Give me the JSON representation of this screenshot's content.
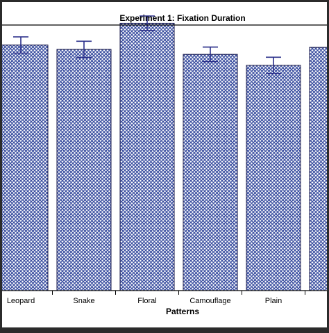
{
  "chart_data": {
    "type": "bar",
    "title": "Experiment 1: Fixation Duration",
    "xlabel": "Patterns",
    "ylabel": "",
    "categories": [
      "Leopard",
      "Snake",
      "Floral",
      "Camouflage",
      "Plain",
      ""
    ],
    "values": [
      0.845,
      0.83,
      0.92,
      0.813,
      0.775,
      0.837
    ],
    "errors": [
      0.028,
      0.028,
      0.025,
      0.025,
      0.028,
      0.0
    ],
    "ylim": [
      0,
      1
    ],
    "grid": false,
    "legend": "none",
    "colors": {
      "bar_fill": "#3a4ea0",
      "pattern_bg": "#ffffff",
      "bar_edge": "#1a1a4a",
      "error_bar": "#2a2f8a",
      "frame": "#000000",
      "background": "#ffffff",
      "outer_border": "#2b2b2b"
    }
  }
}
